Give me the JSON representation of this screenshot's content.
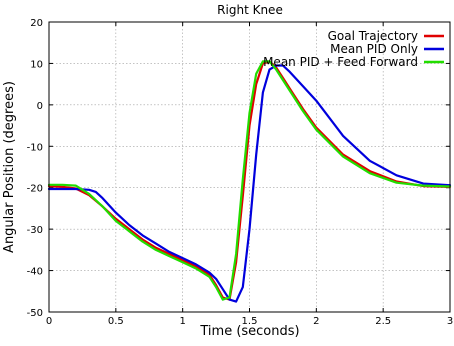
{
  "chart_data": {
    "type": "line",
    "title": "Right Knee",
    "xlabel": "Time (seconds)",
    "ylabel": "Angular Position (degrees)",
    "xlim": [
      0,
      3
    ],
    "ylim": [
      -50,
      20
    ],
    "xticks": [
      0,
      0.5,
      1,
      1.5,
      2,
      2.5,
      3
    ],
    "xtick_labels": [
      "0",
      "0.5",
      "1",
      "1.5",
      "2",
      "2.5",
      "3"
    ],
    "yticks": [
      -50,
      -40,
      -30,
      -20,
      -10,
      0,
      10,
      20
    ],
    "ytick_labels": [
      "-50",
      "-40",
      "-30",
      "-20",
      "-10",
      "0",
      "10",
      "20"
    ],
    "grid": true,
    "legend_position": "top-right",
    "series": [
      {
        "name": "Goal Trajectory",
        "color": "#e00000",
        "x": [
          0,
          0.1,
          0.2,
          0.3,
          0.4,
          0.5,
          0.6,
          0.7,
          0.8,
          0.9,
          1.0,
          1.1,
          1.2,
          1.25,
          1.3,
          1.35,
          1.4,
          1.45,
          1.5,
          1.55,
          1.6,
          1.65,
          1.7,
          1.75,
          1.8,
          1.9,
          2.0,
          2.2,
          2.4,
          2.6,
          2.8,
          3.0
        ],
        "y": [
          -19.6,
          -19.8,
          -20.2,
          -21.8,
          -24.5,
          -27.5,
          -30.0,
          -32.5,
          -34.5,
          -36.0,
          -37.5,
          -39.0,
          -41.0,
          -43.5,
          -46.5,
          -47.0,
          -38.0,
          -22.0,
          -5.0,
          5.0,
          10.0,
          10.5,
          9.0,
          6.5,
          4.0,
          -1.0,
          -5.5,
          -12.0,
          -16.0,
          -18.5,
          -19.6,
          -19.8
        ]
      },
      {
        "name": "Mean PID Only",
        "color": "#0000dd",
        "x": [
          0,
          0.1,
          0.2,
          0.3,
          0.35,
          0.4,
          0.5,
          0.6,
          0.7,
          0.8,
          0.9,
          1.0,
          1.1,
          1.2,
          1.25,
          1.3,
          1.35,
          1.4,
          1.45,
          1.5,
          1.55,
          1.6,
          1.65,
          1.7,
          1.75,
          1.8,
          1.9,
          2.0,
          2.2,
          2.4,
          2.6,
          2.8,
          3.0
        ],
        "y": [
          -20.3,
          -20.3,
          -20.3,
          -20.5,
          -21.0,
          -22.5,
          -26.0,
          -29.0,
          -31.5,
          -33.5,
          -35.5,
          -37.0,
          -38.5,
          -40.5,
          -42.0,
          -44.5,
          -47.0,
          -47.5,
          -44.0,
          -30.0,
          -12.0,
          3.0,
          8.5,
          9.5,
          9.5,
          8.0,
          4.5,
          1.0,
          -7.5,
          -13.5,
          -17.0,
          -19.0,
          -19.4
        ]
      },
      {
        "name": "Mean PID + Feed Forward",
        "color": "#22dd00",
        "x": [
          0,
          0.1,
          0.2,
          0.3,
          0.4,
          0.5,
          0.6,
          0.7,
          0.8,
          0.9,
          1.0,
          1.1,
          1.2,
          1.25,
          1.3,
          1.35,
          1.4,
          1.45,
          1.5,
          1.55,
          1.6,
          1.65,
          1.7,
          1.75,
          1.8,
          1.9,
          2.0,
          2.2,
          2.4,
          2.6,
          2.8,
          3.0
        ],
        "y": [
          -19.3,
          -19.3,
          -19.5,
          -21.5,
          -24.5,
          -28.0,
          -30.5,
          -33.0,
          -35.0,
          -36.5,
          -38.0,
          -39.5,
          -41.5,
          -44.0,
          -47.0,
          -46.5,
          -36.0,
          -18.0,
          -2.0,
          7.5,
          10.5,
          10.5,
          8.5,
          6.0,
          3.5,
          -1.5,
          -6.0,
          -12.5,
          -16.5,
          -18.8,
          -19.5,
          -19.7
        ]
      }
    ]
  }
}
